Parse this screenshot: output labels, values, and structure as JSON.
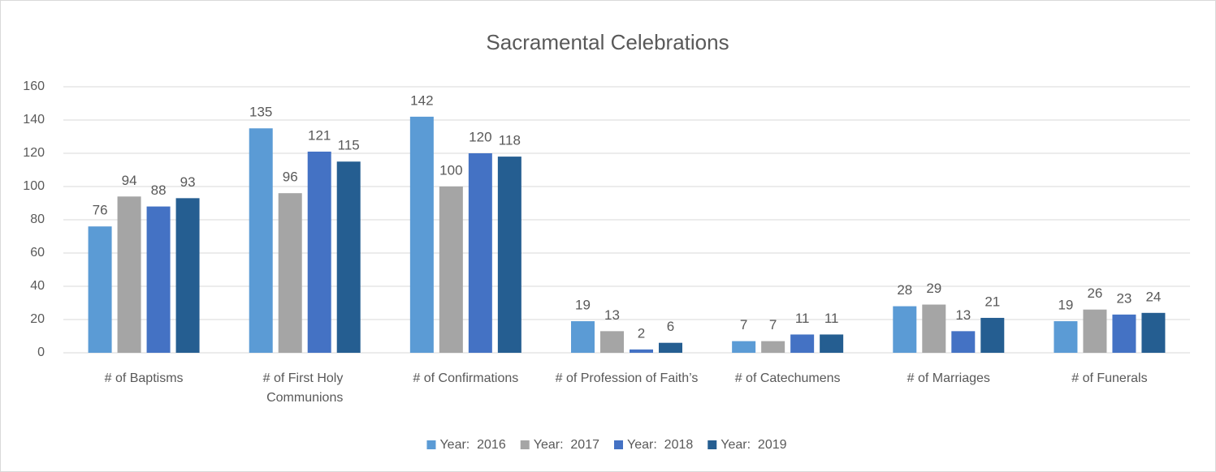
{
  "chart_data": {
    "type": "bar",
    "title": "Sacramental Celebrations",
    "categories": [
      "# of Baptisms",
      "# of First Holy Communions",
      "# of Confirmations",
      "# of Profession of Faith’s",
      "# of Catechumens",
      "# of Marriages",
      "# of Funerals"
    ],
    "series": [
      {
        "name": "Year:  2016",
        "color": "#5b9bd5",
        "values": [
          76,
          135,
          142,
          19,
          7,
          28,
          19
        ]
      },
      {
        "name": "Year:  2017",
        "color": "#a5a5a5",
        "values": [
          94,
          96,
          100,
          13,
          7,
          29,
          26
        ]
      },
      {
        "name": "Year:  2018",
        "color": "#4472c4",
        "values": [
          88,
          121,
          120,
          2,
          11,
          13,
          23
        ]
      },
      {
        "name": "Year:  2019",
        "color": "#255e91",
        "values": [
          93,
          115,
          118,
          6,
          11,
          21,
          24
        ]
      }
    ],
    "ylim": [
      0,
      160
    ],
    "yticks": [
      0,
      20,
      40,
      60,
      80,
      100,
      120,
      140,
      160
    ],
    "grid": true,
    "legend": "bottom"
  }
}
